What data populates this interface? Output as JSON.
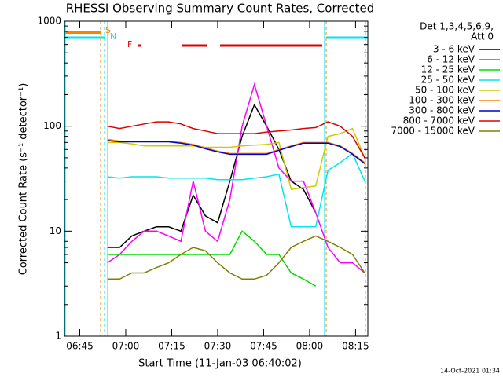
{
  "chart_data": {
    "type": "line",
    "title": "RHESSI Observing Summary Count Rates, Corrected",
    "x_label": "Start Time (11-Jan-03 06:40:02)",
    "y_label": "Corrected Count Rate (s⁻¹ detector⁻¹)",
    "legend_header": [
      "Det 1,3,4,5,6,9,",
      "Att 0"
    ],
    "annotations": [
      "S",
      "N",
      "F"
    ],
    "timestamp": "14-Oct-2021 01:34",
    "log_y": true,
    "ylim": [
      1,
      1000
    ],
    "yticks": [
      1,
      10,
      100,
      1000
    ],
    "xlim": [
      "06:40",
      "08:19"
    ],
    "xticks": [
      "06:45",
      "07:00",
      "07:15",
      "07:30",
      "07:45",
      "08:00",
      "08:15"
    ],
    "x": [
      "06:54",
      "06:58",
      "07:02",
      "07:06",
      "07:10",
      "07:14",
      "07:18",
      "07:22",
      "07:26",
      "07:30",
      "07:34",
      "07:38",
      "07:42",
      "07:46",
      "07:50",
      "07:54",
      "07:58",
      "08:02",
      "08:06",
      "08:10",
      "08:14",
      "08:18"
    ],
    "series": [
      {
        "name": "3 - 6 keV",
        "color": "#000000",
        "values": [
          7,
          7,
          9,
          10,
          11,
          11,
          10,
          22,
          14,
          12,
          30,
          80,
          160,
          100,
          60,
          30,
          25,
          15,
          null,
          null,
          null,
          null
        ]
      },
      {
        "name": "6 - 12 keV",
        "color": "#ff00ff",
        "values": [
          5,
          6,
          8,
          10,
          10,
          9,
          8,
          30,
          10,
          8,
          20,
          100,
          250,
          100,
          40,
          30,
          30,
          15,
          7,
          5,
          5,
          4
        ]
      },
      {
        "name": "12 - 25 keV",
        "color": "#00dd00",
        "values": [
          6,
          6,
          6,
          6,
          6,
          6,
          6,
          6,
          6,
          6,
          6,
          10,
          8,
          6,
          6,
          4,
          3.5,
          3,
          null,
          null,
          null,
          null
        ]
      },
      {
        "name": "25 - 50 keV",
        "color": "#00e5ee",
        "values": [
          33,
          32,
          33,
          33,
          33,
          32,
          32,
          32,
          32,
          31,
          31,
          31,
          32,
          33,
          35,
          11,
          11,
          11,
          38,
          45,
          55,
          30
        ]
      },
      {
        "name": "50 - 100 keV",
        "color": "#cccc00",
        "values": [
          70,
          70,
          68,
          65,
          65,
          65,
          65,
          65,
          63,
          63,
          63,
          65,
          66,
          67,
          70,
          25,
          26,
          27,
          80,
          85,
          95,
          50
        ]
      },
      {
        "name": "100 - 300 keV",
        "color": "#ff8000",
        "values": [
          75,
          72,
          72,
          72,
          72,
          72,
          70,
          67,
          62,
          58,
          55,
          55,
          55,
          55,
          60,
          65,
          70,
          70,
          70,
          65,
          55,
          45
        ]
      },
      {
        "name": "300 - 800 keV",
        "color": "#0000cc",
        "values": [
          73,
          71,
          71,
          71,
          71,
          71,
          69,
          66,
          61,
          57,
          54,
          54,
          54,
          54,
          59,
          64,
          69,
          69,
          69,
          64,
          54,
          44
        ]
      },
      {
        "name": "800 - 7000 keV",
        "color": "#dd0000",
        "values": [
          100,
          95,
          100,
          105,
          110,
          110,
          105,
          95,
          90,
          85,
          85,
          85,
          85,
          88,
          90,
          92,
          95,
          97,
          110,
          100,
          80,
          50
        ]
      },
      {
        "name": "7000 - 15000 keV",
        "color": "#808000",
        "values": [
          3.5,
          3.5,
          4,
          4,
          4.5,
          5,
          6,
          7,
          6.5,
          5,
          4,
          3.5,
          3.5,
          3.8,
          5,
          7,
          8,
          9,
          8,
          7,
          6,
          4
        ]
      }
    ]
  }
}
